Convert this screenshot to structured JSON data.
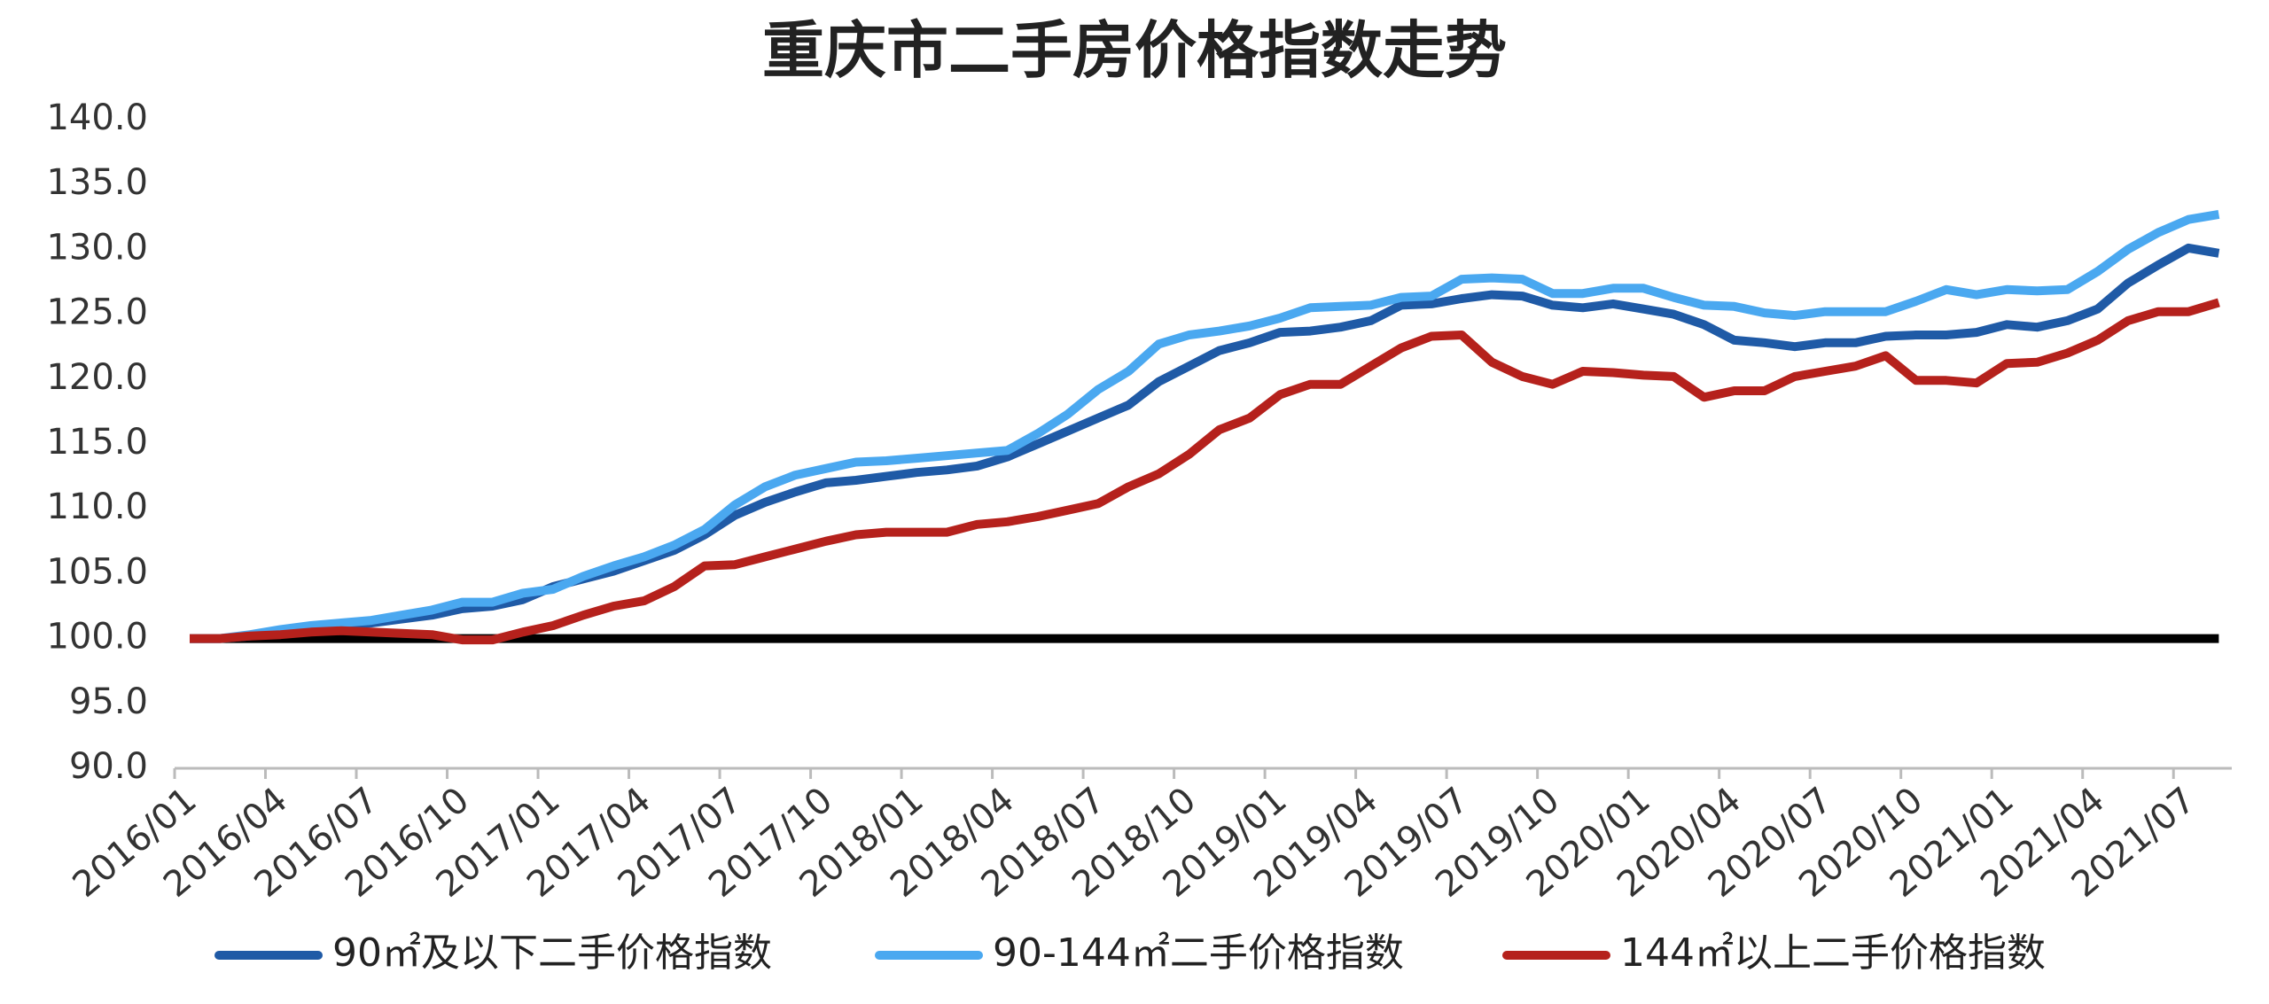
{
  "chart_data": {
    "type": "line",
    "title": "重庆市二手房价格指数走势",
    "categories": [
      "2016/01",
      null,
      null,
      "2016/04",
      null,
      null,
      "2016/07",
      null,
      null,
      "2016/10",
      null,
      null,
      "2017/01",
      null,
      null,
      "2017/04",
      null,
      null,
      "2017/07",
      null,
      null,
      "2017/10",
      null,
      null,
      "2018/01",
      null,
      null,
      "2018/04",
      null,
      null,
      "2018/07",
      null,
      null,
      "2018/10",
      null,
      null,
      "2019/01",
      null,
      null,
      "2019/04",
      null,
      null,
      "2019/07",
      null,
      null,
      "2019/10",
      null,
      null,
      "2020/01",
      null,
      null,
      "2020/04",
      null,
      null,
      "2020/07",
      null,
      null,
      "2020/10",
      null,
      null,
      "2021/01",
      null,
      null,
      "2021/04",
      null,
      null,
      "2021/07",
      null
    ],
    "series": [
      {
        "name": "90㎡及以下二手价格指数",
        "color": "#1f5aa6",
        "values": [
          100,
          100,
          100.2,
          100.5,
          100.8,
          101,
          101.2,
          101.5,
          101.8,
          102.3,
          102.5,
          103,
          104,
          104.6,
          105.2,
          106,
          106.8,
          108,
          109.5,
          110.5,
          111.3,
          112,
          112.2,
          112.5,
          112.8,
          113,
          113.3,
          114,
          115,
          116,
          117,
          118,
          119.8,
          121,
          122.2,
          122.8,
          123.6,
          123.7,
          124,
          124.5,
          125.7,
          125.8,
          126.2,
          126.5,
          126.4,
          125.7,
          125.5,
          125.8,
          125.4,
          125,
          124.2,
          123,
          122.8,
          122.5,
          122.8,
          122.8,
          123.3,
          123.4,
          123.4,
          123.6,
          124.2,
          124,
          124.5,
          125.4,
          127.4,
          128.8,
          130.1,
          129.7
        ]
      },
      {
        "name": "90-144㎡二手价格指数",
        "color": "#4aa8f0",
        "values": [
          100,
          100,
          100.3,
          100.7,
          101,
          101.2,
          101.4,
          101.8,
          102.2,
          102.8,
          102.8,
          103.5,
          103.8,
          104.8,
          105.6,
          106.3,
          107.2,
          108.4,
          110.3,
          111.7,
          112.6,
          113.1,
          113.6,
          113.7,
          113.9,
          114.1,
          114.3,
          114.5,
          115.8,
          117.3,
          119.2,
          120.6,
          122.7,
          123.4,
          123.7,
          124.1,
          124.7,
          125.5,
          125.6,
          125.7,
          126.3,
          126.4,
          127.7,
          127.8,
          127.7,
          126.6,
          126.6,
          127,
          127,
          126.3,
          125.7,
          125.6,
          125.1,
          124.9,
          125.2,
          125.2,
          125.2,
          126,
          126.9,
          126.5,
          126.9,
          126.8,
          126.9,
          128.3,
          130,
          131.3,
          132.3,
          132.7
        ]
      },
      {
        "name": "144㎡以上二手价格指数",
        "color": "#b5211c",
        "values": [
          100,
          100,
          100.2,
          100.3,
          100.5,
          100.6,
          100.5,
          100.4,
          100.3,
          99.9,
          99.9,
          100.5,
          101,
          101.8,
          102.5,
          102.9,
          104,
          105.6,
          105.7,
          106.3,
          106.9,
          107.5,
          108,
          108.2,
          108.2,
          108.2,
          108.8,
          109,
          109.4,
          109.9,
          110.4,
          111.7,
          112.7,
          114.2,
          116.1,
          117,
          118.8,
          119.6,
          119.6,
          121,
          122.4,
          123.3,
          123.4,
          121.3,
          120.2,
          119.6,
          120.6,
          120.5,
          120.3,
          120.2,
          118.6,
          119.1,
          119.1,
          120.2,
          120.6,
          121,
          121.8,
          119.9,
          119.9,
          119.7,
          121.2,
          121.3,
          122,
          123,
          124.5,
          125.2,
          125.2,
          125.9
        ]
      }
    ],
    "reference_line": 100,
    "reference_color": "#000000",
    "ylim": [
      90,
      140
    ],
    "yticks": [
      {
        "value": 90,
        "label": "90.0"
      },
      {
        "value": 95,
        "label": "95.0"
      },
      {
        "value": 100,
        "label": "100.0"
      },
      {
        "value": 105,
        "label": "105.0"
      },
      {
        "value": 110,
        "label": "110.0"
      },
      {
        "value": 115,
        "label": "115.0"
      },
      {
        "value": 120,
        "label": "120.0"
      },
      {
        "value": 125,
        "label": "125.0"
      },
      {
        "value": 130,
        "label": "130.0"
      },
      {
        "value": 135,
        "label": "135.0"
      },
      {
        "value": 140,
        "label": "140.0"
      }
    ],
    "grid": false,
    "legend": "bottom"
  }
}
